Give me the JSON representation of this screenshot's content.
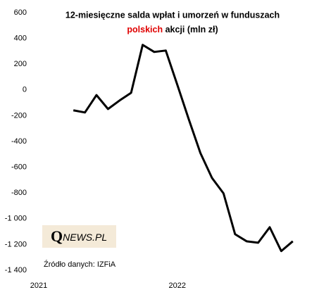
{
  "chart_data": {
    "type": "line",
    "title": "12-miesięczne salda wpłat i umorzeń w funduszach",
    "title_line2": {
      "highlight": "polskich",
      "rest": " akcji (mln zł)"
    },
    "logo": {
      "initial": "Q",
      "rest": "NEWS.PL"
    },
    "source": "Źródło danych: IZFiA",
    "categories": [
      "2021",
      null,
      null,
      null,
      null,
      null,
      null,
      null,
      null,
      null,
      null,
      null,
      "2022",
      null,
      null,
      null,
      null,
      null,
      null,
      null,
      null,
      null,
      null
    ],
    "series": [
      {
        "name": null,
        "color": "#000000",
        "values": [
          null,
          null,
          null,
          -158,
          -175,
          -40,
          -148,
          -82,
          -22,
          350,
          295,
          306,
          40,
          -230,
          -490,
          -683,
          -803,
          -1120,
          -1175,
          -1186,
          -1066,
          -1251,
          -1175
        ]
      }
    ],
    "ylim": [
      -1400,
      600
    ],
    "yticks": [
      600,
      400,
      200,
      0,
      -200,
      -400,
      -600,
      -800,
      {
        "value": -1000,
        "label": "-1 000"
      },
      {
        "value": -1200,
        "label": "-1 200"
      },
      {
        "value": -1400,
        "label": "-1 400"
      }
    ],
    "grid": false
  }
}
